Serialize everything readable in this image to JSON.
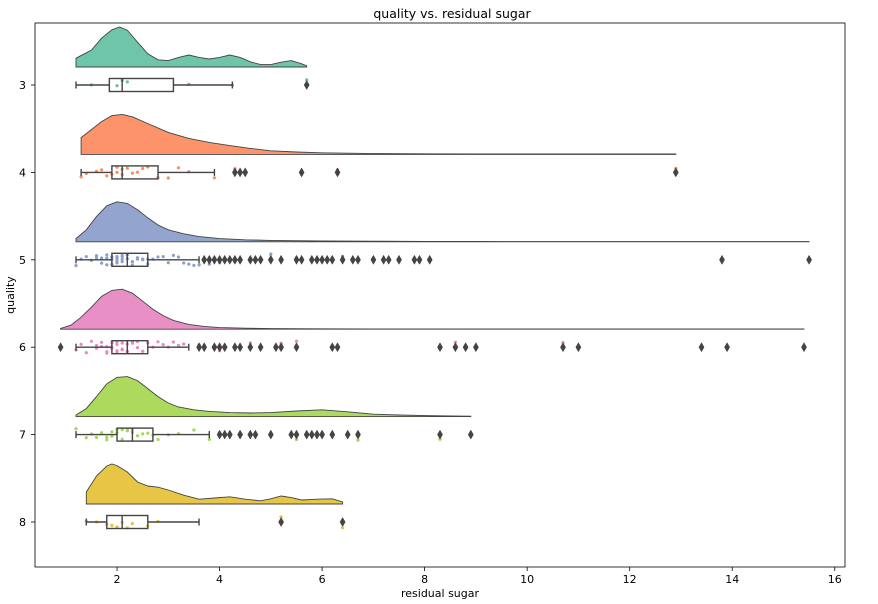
{
  "chart_data": {
    "type": "raincloud",
    "title": "quality vs. residual sugar",
    "xlabel": "residual sugar",
    "ylabel": "quality",
    "xlim": [
      0.4,
      16.2
    ],
    "x_ticks": [
      2,
      4,
      6,
      8,
      10,
      12,
      14,
      16
    ],
    "x_tick_labels": [
      "2",
      "4",
      "6",
      "8",
      "10",
      "12",
      "14",
      "16"
    ],
    "grid": false,
    "legend": "none",
    "categories": [
      "3",
      "4",
      "5",
      "6",
      "7",
      "8"
    ],
    "series": [
      {
        "category": "3",
        "color": "#66c2a5",
        "density_x": [
          1.2,
          1.5,
          1.7,
          1.9,
          2.05,
          2.2,
          2.4,
          2.6,
          2.8,
          3.0,
          3.2,
          3.4,
          3.6,
          3.8,
          4.0,
          4.2,
          4.4,
          4.6,
          4.8,
          5.0,
          5.2,
          5.4,
          5.6,
          5.7
        ],
        "density_y": [
          0.22,
          0.42,
          0.72,
          0.93,
          1.0,
          0.92,
          0.62,
          0.33,
          0.18,
          0.16,
          0.24,
          0.3,
          0.24,
          0.2,
          0.24,
          0.3,
          0.24,
          0.13,
          0.06,
          0.06,
          0.12,
          0.16,
          0.08,
          0.03
        ],
        "box": {
          "whisker_low": 1.2,
          "q1": 1.85,
          "median": 2.1,
          "q3": 3.1,
          "whisker_high": 4.25
        },
        "outliers": [
          5.7
        ],
        "points": [
          1.5,
          2.0,
          2.1,
          2.2,
          3.4,
          4.25,
          5.7
        ]
      },
      {
        "category": "4",
        "color": "#fc8d62",
        "density_x": [
          1.3,
          1.5,
          1.7,
          1.9,
          2.1,
          2.3,
          2.6,
          3.0,
          3.4,
          3.8,
          4.2,
          4.6,
          5.0,
          5.5,
          6.0,
          6.5,
          7.0,
          8.0,
          9.0,
          10.0,
          11.0,
          12.0,
          12.9
        ],
        "density_y": [
          0.42,
          0.62,
          0.82,
          0.97,
          1.0,
          0.94,
          0.77,
          0.55,
          0.4,
          0.3,
          0.22,
          0.15,
          0.09,
          0.06,
          0.04,
          0.03,
          0.02,
          0.015,
          0.01,
          0.01,
          0.01,
          0.01,
          0.01
        ],
        "box": {
          "whisker_low": 1.3,
          "q1": 1.9,
          "median": 2.1,
          "q3": 2.8,
          "whisker_high": 3.9
        },
        "outliers": [
          4.3,
          4.4,
          4.5,
          5.6,
          6.3,
          12.9
        ],
        "points": [
          1.3,
          1.4,
          1.6,
          1.7,
          1.8,
          1.9,
          2.0,
          2.0,
          2.1,
          2.1,
          2.2,
          2.3,
          2.4,
          2.5,
          2.6,
          2.8,
          3.0,
          3.2,
          3.4,
          3.9,
          4.3,
          4.4,
          4.5,
          5.6,
          6.3,
          12.9
        ]
      },
      {
        "category": "5",
        "color": "#8da0cb",
        "density_x": [
          1.2,
          1.4,
          1.6,
          1.8,
          2.0,
          2.2,
          2.4,
          2.6,
          2.8,
          3.0,
          3.3,
          3.6,
          4.0,
          4.5,
          5.0,
          6.0,
          7.0,
          8.0,
          9.0,
          10.0,
          12.0,
          14.0,
          15.5
        ],
        "density_y": [
          0.08,
          0.3,
          0.63,
          0.9,
          1.0,
          0.96,
          0.8,
          0.6,
          0.42,
          0.3,
          0.2,
          0.13,
          0.08,
          0.05,
          0.035,
          0.02,
          0.015,
          0.01,
          0.008,
          0.005,
          0.005,
          0.005,
          0.005
        ],
        "box": {
          "whisker_low": 1.2,
          "q1": 1.9,
          "median": 2.2,
          "q3": 2.6,
          "whisker_high": 3.6
        },
        "outliers": [
          3.7,
          3.8,
          3.9,
          4.0,
          4.1,
          4.2,
          4.3,
          4.4,
          4.6,
          4.7,
          4.8,
          5.0,
          5.2,
          5.5,
          5.6,
          5.8,
          5.9,
          6.0,
          6.1,
          6.2,
          6.4,
          6.6,
          6.7,
          7.0,
          7.2,
          7.3,
          7.5,
          7.8,
          7.9,
          8.1,
          13.8,
          15.5
        ],
        "points": [
          1.2,
          1.3,
          1.4,
          1.5,
          1.6,
          1.6,
          1.7,
          1.7,
          1.8,
          1.8,
          1.8,
          1.9,
          1.9,
          1.9,
          2.0,
          2.0,
          2.0,
          2.0,
          2.1,
          2.1,
          2.1,
          2.1,
          2.2,
          2.2,
          2.2,
          2.3,
          2.3,
          2.3,
          2.4,
          2.4,
          2.5,
          2.5,
          2.6,
          2.6,
          2.7,
          2.8,
          2.9,
          3.0,
          3.1,
          3.2,
          3.3,
          3.4,
          3.5,
          3.6,
          3.8,
          4.0,
          4.3,
          4.6,
          5.0,
          5.5,
          6.0,
          6.4,
          7.0,
          7.9
        ]
      },
      {
        "category": "6",
        "color": "#e78ac3",
        "density_x": [
          0.9,
          1.1,
          1.3,
          1.5,
          1.7,
          1.9,
          2.1,
          2.3,
          2.5,
          2.7,
          2.9,
          3.1,
          3.4,
          3.7,
          4.0,
          4.5,
          5.0,
          6.0,
          7.0,
          8.0,
          9.0,
          10.0,
          11.0,
          12.0,
          13.0,
          14.0,
          15.4
        ],
        "density_y": [
          0.02,
          0.1,
          0.3,
          0.55,
          0.82,
          0.97,
          1.0,
          0.9,
          0.7,
          0.5,
          0.34,
          0.22,
          0.12,
          0.07,
          0.04,
          0.025,
          0.015,
          0.01,
          0.008,
          0.008,
          0.008,
          0.008,
          0.008,
          0.006,
          0.006,
          0.006,
          0.006
        ],
        "box": {
          "whisker_low": 1.2,
          "q1": 1.9,
          "median": 2.2,
          "q3": 2.6,
          "whisker_high": 3.4
        },
        "outliers": [
          0.9,
          3.6,
          3.7,
          3.9,
          4.0,
          4.1,
          4.3,
          4.4,
          4.6,
          4.8,
          5.1,
          5.2,
          5.5,
          6.2,
          6.3,
          8.3,
          8.6,
          8.8,
          9.0,
          10.7,
          11.0,
          13.4,
          13.9,
          15.4
        ],
        "points": [
          1.2,
          1.3,
          1.4,
          1.5,
          1.6,
          1.6,
          1.7,
          1.7,
          1.8,
          1.8,
          1.8,
          1.9,
          1.9,
          1.9,
          2.0,
          2.0,
          2.0,
          2.0,
          2.1,
          2.1,
          2.1,
          2.1,
          2.2,
          2.2,
          2.2,
          2.3,
          2.3,
          2.3,
          2.4,
          2.4,
          2.5,
          2.5,
          2.6,
          2.7,
          2.8,
          2.9,
          3.0,
          3.1,
          3.2,
          3.3,
          3.6,
          4.0,
          4.6,
          5.2,
          5.5,
          6.2,
          8.6,
          8.8,
          10.7,
          11.0,
          15.4
        ]
      },
      {
        "category": "7",
        "color": "#a6d854",
        "density_x": [
          1.2,
          1.4,
          1.6,
          1.8,
          2.0,
          2.2,
          2.4,
          2.6,
          2.8,
          3.0,
          3.2,
          3.5,
          3.8,
          4.2,
          4.6,
          5.0,
          5.5,
          6.0,
          6.5,
          7.0,
          7.5,
          8.0,
          8.5,
          8.9
        ],
        "density_y": [
          0.04,
          0.2,
          0.5,
          0.82,
          0.98,
          1.0,
          0.9,
          0.7,
          0.5,
          0.34,
          0.24,
          0.17,
          0.13,
          0.1,
          0.09,
          0.1,
          0.14,
          0.17,
          0.12,
          0.06,
          0.04,
          0.025,
          0.015,
          0.01
        ],
        "box": {
          "whisker_low": 1.2,
          "q1": 2.0,
          "median": 2.3,
          "q3": 2.7,
          "whisker_high": 3.8
        },
        "outliers": [
          4.0,
          4.1,
          4.2,
          4.4,
          4.6,
          4.7,
          5.0,
          5.4,
          5.5,
          5.7,
          5.8,
          5.9,
          6.0,
          6.2,
          6.5,
          6.7,
          8.3,
          8.9
        ],
        "points": [
          1.2,
          1.4,
          1.5,
          1.6,
          1.7,
          1.8,
          1.8,
          1.9,
          1.9,
          2.0,
          2.0,
          2.1,
          2.1,
          2.2,
          2.2,
          2.3,
          2.3,
          2.4,
          2.5,
          2.6,
          2.7,
          2.8,
          3.0,
          3.2,
          3.5,
          3.8,
          4.2,
          4.6,
          5.5,
          5.9,
          6.2,
          6.7,
          8.3
        ]
      },
      {
        "category": "8",
        "color": "#e5c33a",
        "density_x": [
          1.4,
          1.6,
          1.8,
          1.9,
          2.0,
          2.2,
          2.4,
          2.6,
          2.8,
          3.0,
          3.3,
          3.6,
          3.9,
          4.2,
          4.5,
          4.8,
          5.0,
          5.2,
          5.4,
          5.6,
          5.9,
          6.2,
          6.4
        ],
        "density_y": [
          0.3,
          0.7,
          0.95,
          1.0,
          0.96,
          0.8,
          0.55,
          0.45,
          0.42,
          0.35,
          0.22,
          0.12,
          0.15,
          0.18,
          0.12,
          0.08,
          0.13,
          0.2,
          0.16,
          0.1,
          0.12,
          0.13,
          0.05
        ],
        "box": {
          "whisker_low": 1.4,
          "q1": 1.8,
          "median": 2.1,
          "q3": 2.6,
          "whisker_high": 3.6
        },
        "outliers": [
          5.2,
          6.4
        ],
        "points": [
          1.4,
          1.6,
          1.8,
          1.9,
          2.0,
          2.1,
          2.2,
          2.3,
          2.6,
          2.8,
          5.2,
          6.4
        ]
      }
    ]
  }
}
